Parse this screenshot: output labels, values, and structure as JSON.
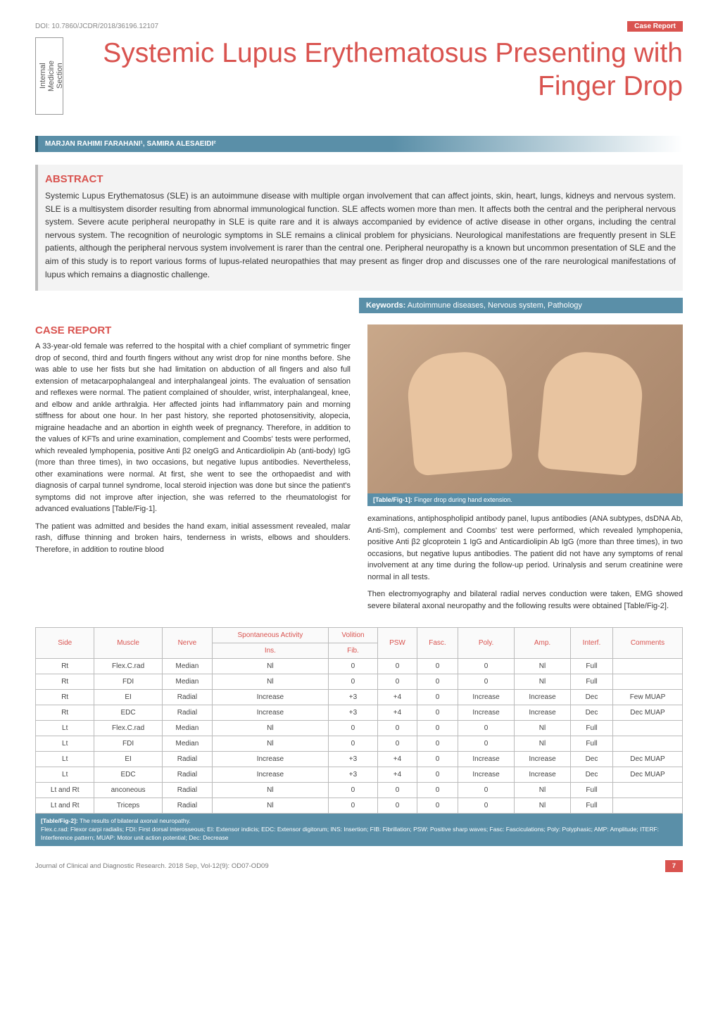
{
  "doi": "DOI: 10.7860/JCDR/2018/36196.12107",
  "badge": "Case Report",
  "section_label": "Internal Medicine Section",
  "title": "Systemic Lupus Erythematosus Presenting with Finger Drop",
  "authors": "MARJAN RAHIMI FARAHANI¹, SAMIRA ALESAEIDI²",
  "abstract_heading": "ABSTRACT",
  "abstract_text": "Systemic Lupus Erythematosus (SLE) is an autoimmune disease with multiple organ involvement that can affect joints, skin, heart, lungs, kidneys and nervous system. SLE is a multisystem disorder resulting from abnormal immunological function. SLE affects women more than men. It affects both the central and the peripheral nervous system. Severe acute peripheral neuropathy in SLE is quite rare and it is always accompanied by evidence of active disease in other organs, including the central nervous system. The recognition of neurologic symptoms in SLE remains a clinical problem for physicians. Neurological manifestations are frequently present in SLE patients, although the peripheral nervous system involvement is rarer than the central one. Peripheral neuropathy is a known but uncommon presentation of SLE and the aim of this study is to report various forms of lupus-related neuropathies that may present as finger drop and discusses one of the rare neurological manifestations of lupus which remains a diagnostic challenge.",
  "keywords_label": "Keywords:",
  "keywords_text": " Autoimmune diseases, Nervous system, Pathology",
  "case_heading": "CASE REPORT",
  "case_p1": "A 33-year-old female was referred to the hospital with a chief compliant of symmetric finger drop of second, third and fourth fingers without any wrist drop for nine months before. She was able to use her fists but she had limitation on abduction of all fingers and also full extension of metacarpophalangeal and interphalangeal joints. The evaluation of sensation and reflexes were normal. The patient complained of shoulder, wrist, interphalangeal, knee, and elbow and ankle arthralgia. Her affected joints had inflammatory pain and morning stiffness for about one hour. In her past history, she reported photosensitivity, alopecia, migraine headache and an abortion in eighth week of pregnancy. Therefore, in addition to the values of KFTs and urine examination, complement and Coombs' tests were performed, which revealed lymphopenia, positive Anti β2 oneIgG and Anticardiolipin Ab (anti-body) IgG (more than three times), in two occasions, but negative lupus antibodies. Nevertheless, other examinations were normal. At first, she went to see the orthopaedist and with diagnosis of carpal tunnel syndrome, local steroid injection was done but since the patient's symptoms did not improve after injection, she was referred to the rheumatologist for advanced evaluations [Table/Fig-1].",
  "case_p2": "The patient was admitted and besides the hand exam, initial assessment revealed, malar rash, diffuse thinning and broken hairs, tenderness in wrists, elbows and shoulders. Therefore, in addition to routine blood",
  "fig1_caption_label": "[Table/Fig-1]:",
  "fig1_caption_text": " Finger drop during hand extension.",
  "case_p3": "examinations, antiphospholipid antibody panel, lupus antibodies (ANA subtypes, dsDNA Ab, Anti-Sm), complement and Coombs' test were performed, which revealed lymphopenia, positive Anti β2 glcoprotein 1 IgG and Anticardiolipin Ab IgG (more than three times), in two occasions, but negative lupus antibodies. The patient did not have any symptoms of renal involvement at any time during the follow-up period. Urinalysis and serum creatinine were normal in all tests.",
  "case_p4": "Then electromyography and bilateral radial nerves conduction were taken, EMG showed severe bilateral axonal neuropathy and the following results were obtained [Table/Fig-2].",
  "table2": {
    "headers_top": [
      "Side",
      "Muscle",
      "Nerve",
      "Spontaneous Activity",
      "Volition",
      "PSW",
      "Fasc.",
      "Poly.",
      "Amp.",
      "Interf.",
      "Comments"
    ],
    "headers_sub": [
      "Ins.",
      "Fib."
    ],
    "rows": [
      [
        "Rt",
        "Flex.C.rad",
        "Median",
        "Nl",
        "0",
        "0",
        "0",
        "0",
        "Nl",
        "Full",
        ""
      ],
      [
        "Rt",
        "FDI",
        "Median",
        "Nl",
        "0",
        "0",
        "0",
        "0",
        "Nl",
        "Full",
        ""
      ],
      [
        "Rt",
        "EI",
        "Radial",
        "Increase",
        "+3",
        "+4",
        "0",
        "Increase",
        "Increase",
        "Dec",
        "Few MUAP"
      ],
      [
        "Rt",
        "EDC",
        "Radial",
        "Increase",
        "+3",
        "+4",
        "0",
        "Increase",
        "Increase",
        "Dec",
        "Dec MUAP"
      ],
      [
        "Lt",
        "Flex.C.rad",
        "Median",
        "Nl",
        "0",
        "0",
        "0",
        "0",
        "Nl",
        "Full",
        ""
      ],
      [
        "Lt",
        "FDI",
        "Median",
        "Nl",
        "0",
        "0",
        "0",
        "0",
        "Nl",
        "Full",
        ""
      ],
      [
        "Lt",
        "EI",
        "Radial",
        "Increase",
        "+3",
        "+4",
        "0",
        "Increase",
        "Increase",
        "Dec",
        "Dec MUAP"
      ],
      [
        "Lt",
        "EDC",
        "Radial",
        "Increase",
        "+3",
        "+4",
        "0",
        "Increase",
        "Increase",
        "Dec",
        "Dec MUAP"
      ],
      [
        "Lt and Rt",
        "anconeous",
        "Radial",
        "Nl",
        "0",
        "0",
        "0",
        "0",
        "Nl",
        "Full",
        ""
      ],
      [
        "Lt and Rt",
        "Triceps",
        "Radial",
        "Nl",
        "0",
        "0",
        "0",
        "0",
        "Nl",
        "Full",
        ""
      ]
    ]
  },
  "table2_caption_label": "[Table/Fig-2]:",
  "table2_caption_text": " The results of bilateral axonal neuropathy.",
  "table2_abbrev": "Flex.c.rad: Flexor carpi radialis; FDI: First dorsal interosseous; EI: Extensor indicis; EDC: Extensor digitorum; INS: Insertion; FIB: Fibrillation; PSW: Positive sharp waves; Fasc: Fasciculations; Poly: Polyphasic; AMP: Amplitude; ITERF: Interference pattern; MUAP: Motor unit action potential; Dec: Decrease",
  "footer_journal": "Journal of Clinical and Diagnostic Research. 2018 Sep, Vol-12(9): OD07-OD09",
  "footer_page": "7",
  "colors": {
    "accent_red": "#d9534f",
    "accent_blue": "#5a8fa8",
    "text_gray": "#333333"
  }
}
